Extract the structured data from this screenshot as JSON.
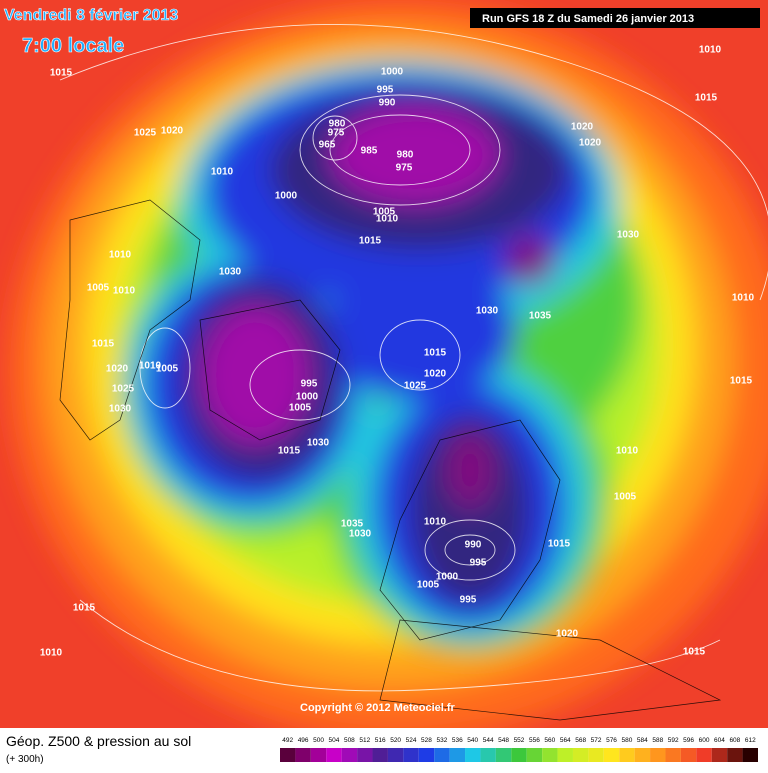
{
  "header": {
    "date": "Vendredi 8 février 2013",
    "time": "7:00 locale",
    "run": "Run GFS 18 Z du Samedi 26 janvier 2013"
  },
  "isobar_labels": [
    "1015",
    "1025",
    "1020",
    "1010",
    "1000",
    "995",
    "990",
    "980",
    "975",
    "965",
    "985",
    "980",
    "975",
    "1020",
    "1020",
    "1010",
    "1015",
    "1000",
    "1005",
    "1010",
    "1015",
    "1030",
    "1010",
    "1030",
    "1005",
    "1010",
    "1030",
    "1035",
    "1010",
    "1015",
    "1015",
    "1020",
    "1010",
    "1005",
    "995",
    "1020",
    "1025",
    "1000",
    "1005",
    "1025",
    "1030",
    "1015",
    "1030",
    "1015",
    "1010",
    "1005",
    "1035",
    "1030",
    "1010",
    "990",
    "995",
    "1000",
    "1005",
    "1015",
    "995",
    "1015",
    "1010",
    "1020",
    "1015"
  ],
  "copyright": "Copyright © 2012 Meteociel.fr",
  "footer": {
    "title": "Géop. Z500 & pression au sol",
    "lead": "(+ 300h)",
    "scale": [
      "492",
      "496",
      "500",
      "504",
      "508",
      "512",
      "516",
      "520",
      "524",
      "528",
      "532",
      "536",
      "540",
      "544",
      "548",
      "552",
      "556",
      "560",
      "564",
      "568",
      "572",
      "576",
      "580",
      "584",
      "588",
      "592",
      "596",
      "600",
      "604",
      "608",
      "612"
    ]
  }
}
